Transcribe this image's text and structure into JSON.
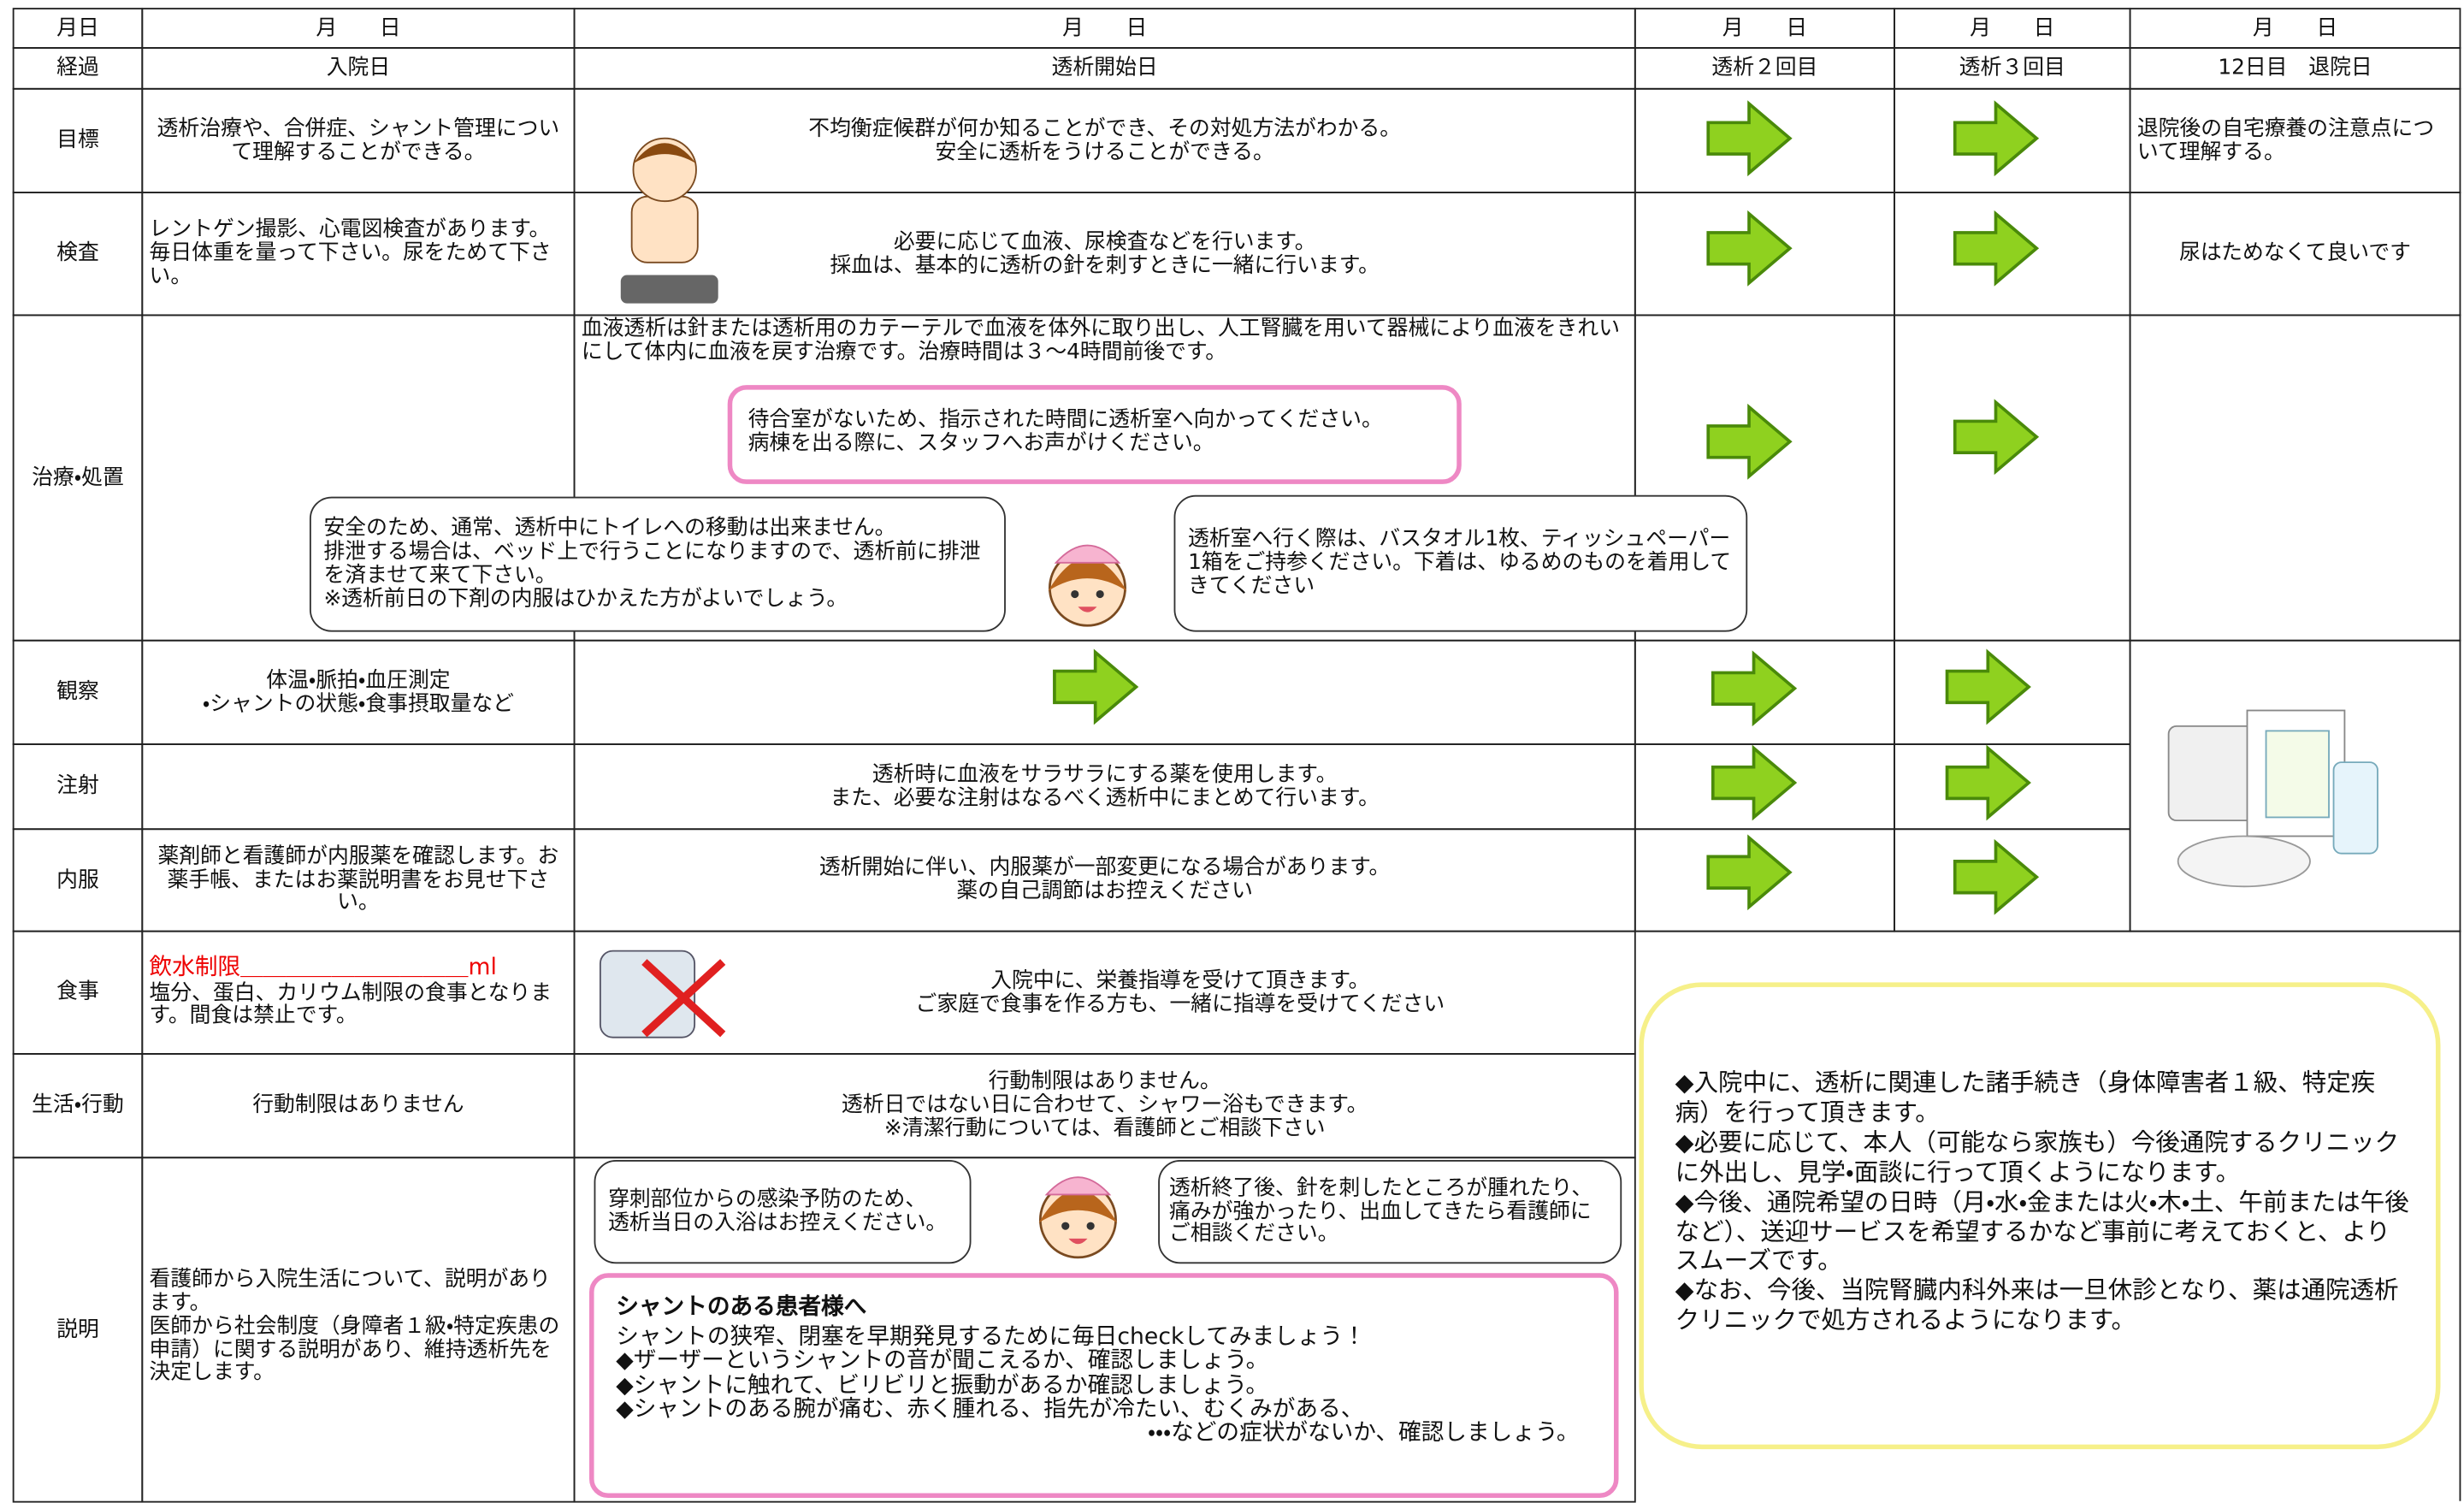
{
  "header": {
    "dates": [
      "月日",
      "月　　日",
      "月　　日",
      "月　　日",
      "月　　日",
      "月　　日"
    ],
    "progress": [
      "経過",
      "入院日",
      "透析開始日",
      "透析２回目",
      "透析３回目",
      "12日目　退院日"
    ]
  },
  "rows": [
    {
      "label": "目標",
      "admission": "透析治療や、合併症、シャント管理について理解することができる。",
      "start": "不均衡症候群が何か知ることができ、その対処方法がわかる。\n安全に透析をうけることができる。",
      "discharge": "退院後の自宅療養の注意点について理解する。"
    },
    {
      "label": "検査",
      "admission": "レントゲン撮影、心電図検査があります。毎日体重を量って下さい。尿をためて下さい。",
      "start": "必要に応じて血液、尿検査などを行います。\n採血は、基本的に透析の針を刺すときに一緒に行います。",
      "discharge": "尿はためなくて良いです"
    },
    {
      "label": "治療・処置",
      "start": "血液透析は針または透析用のカテーテルで血液を体外に取り出し、人工腎臓を用いて器械により血液をきれいにして体内に血液を戻す治療です。治療時間は３～4時間前後です。",
      "note": "待合室がないため、指示された時間に透析室へ向かってください。\n病棟を出る際に、スタッフへお声がけください。",
      "bubble_left": "安全のため、通常、透析中にトイレへの移動は出来ません。\n排泄する場合は、ベッド上で行うことになりますので、透析前に排泄を済ませて来て下さい。\n※透析前日の下剤の内服はひかえた方がよいでしょう。",
      "bubble_right": "透析室へ行く際は、バスタオル1枚、ティッシュペーパー1箱をご持参ください。下着は、ゆるめのものを着用してきてください"
    },
    {
      "label": "観察",
      "admission": "体温・脈拍・血圧測定\n・シャントの状態・食事摂取量など"
    },
    {
      "label": "注射",
      "start": "透析時に血液をサラサラにする薬を使用します。\nまた、必要な注射はなるべく透析中にまとめて行います。"
    },
    {
      "label": "内服",
      "admission": "薬剤師と看護師が内服薬を確認します。お薬手帳、またはお薬説明書をお見せ下さい。",
      "start": "透析開始に伴い、内服薬が一部変更になる場合があります。\n薬の自己調節はお控えください"
    },
    {
      "label": "食事",
      "admission_note": "飲水制限＿＿＿＿＿＿＿＿＿＿ml",
      "admission": "塩分、蛋白、カリウム制限の食事となります。間食は禁止です。",
      "start": "入院中に、栄養指導を受けて頂きます。\nご家庭で食事を作る方も、一緒に指導を受けてください"
    },
    {
      "label": "生活・行動",
      "admission": "行動制限はありません",
      "start": "行動制限はありません。\n透析日ではない日に合わせて、シャワー浴もできます。\n※清潔行動については、看護師とご相談下さい"
    },
    {
      "label": "説明",
      "admission": "看護師から入院生活について、説明があります。\n医師から社会制度（身障者１級・特定疾患の申請）に関する説明があり、維持透析先を決定します。",
      "bubble_left": "穿刺部位からの感染予防のため、\n透析当日の入浴はお控えください。",
      "bubble_right": "透析終了後、針を刺したところが腫れたり、痛みが強かったり、出血してきたら看護師にご相談ください。",
      "box_title": "シャントのある患者様へ",
      "box_lines": [
        " シャントの狭窄、閉塞を早期発見するために毎日checkしてみましょう！",
        "◆ザーザーというシャントの音が聞こえるか、確認しましょう。",
        "◆シャントに触れて、ビリビリと振動があるか確認しましょう。",
        "◆シャントのある腕が痛む、赤く腫れる、指先が冷たい、むくみがある、",
        "・・・などの症状がないか、確認しましょう。"
      ]
    }
  ],
  "info": [
    "◆入院中に、透析に関連した諸手続き（身体障害者１級、特定疾病）を行って頂きます。",
    "◆必要に応じて、本人（可能なら家族も）今後通院するクリニックに外出し、見学・面談に行って頂くようになります。",
    "◆今後、通院希望の日時（月・水・金または火・木・土、午前または午後など）、送迎サービスを希望するかなど事前に考えておくと、よりスムーズです。",
    "◆なお、今後、当院腎臓内科外来は一旦休診となり、薬は通院透析クリニックで処方されるようになります。"
  ]
}
